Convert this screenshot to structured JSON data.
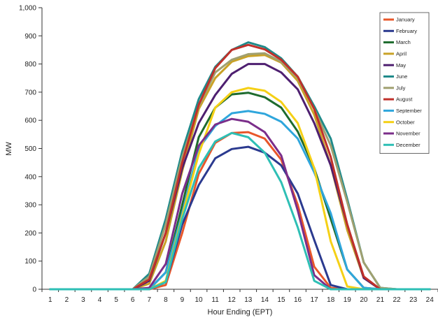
{
  "chart_data": {
    "type": "line",
    "xlabel": "Hour Ending (EPT)",
    "ylabel": "MW",
    "ylim": [
      0,
      1000
    ],
    "yticks": [
      0,
      100,
      200,
      300,
      400,
      500,
      600,
      700,
      800,
      900,
      1000
    ],
    "ytick_labels": [
      "0",
      "100",
      "200",
      "300",
      "400",
      "500",
      "600",
      "700",
      "800",
      "900",
      "1,000"
    ],
    "x": [
      1,
      2,
      3,
      4,
      5,
      6,
      7,
      8,
      9,
      10,
      11,
      12,
      13,
      14,
      15,
      16,
      17,
      18,
      19,
      20,
      21,
      22,
      23,
      24
    ],
    "xtick_labels": [
      "1",
      "2",
      "3",
      "4",
      "5",
      "6",
      "7",
      "8",
      "9",
      "10",
      "11",
      "12",
      "13",
      "14",
      "15",
      "16",
      "17",
      "18",
      "19",
      "20",
      "21",
      "22",
      "23",
      "24"
    ],
    "grid": false,
    "legend_position": "top-right",
    "series": [
      {
        "name": "January",
        "color": "#E8572A",
        "values": [
          0,
          0,
          0,
          0,
          0,
          0,
          0,
          15,
          200,
          410,
          520,
          555,
          558,
          535,
          460,
          300,
          80,
          5,
          0,
          0,
          0,
          0,
          0,
          0
        ]
      },
      {
        "name": "February",
        "color": "#2B3A8F",
        "values": [
          0,
          0,
          0,
          0,
          0,
          0,
          0,
          25,
          230,
          370,
          465,
          498,
          506,
          485,
          440,
          340,
          175,
          15,
          0,
          0,
          0,
          0,
          0,
          0
        ]
      },
      {
        "name": "March",
        "color": "#1E6B2E",
        "values": [
          0,
          0,
          0,
          0,
          0,
          0,
          0,
          60,
          300,
          540,
          645,
          692,
          698,
          682,
          645,
          560,
          430,
          250,
          70,
          5,
          0,
          0,
          0,
          0
        ]
      },
      {
        "name": "April",
        "color": "#C9A227",
        "values": [
          0,
          0,
          0,
          0,
          0,
          0,
          20,
          170,
          420,
          640,
          750,
          808,
          828,
          832,
          805,
          740,
          620,
          440,
          210,
          40,
          0,
          0,
          0,
          0
        ]
      },
      {
        "name": "May",
        "color": "#4E1F70",
        "values": [
          0,
          0,
          0,
          0,
          0,
          0,
          30,
          200,
          430,
          590,
          690,
          765,
          800,
          800,
          770,
          710,
          590,
          440,
          230,
          40,
          0,
          0,
          0,
          0
        ]
      },
      {
        "name": "June",
        "color": "#1F8A8A",
        "values": [
          0,
          0,
          0,
          0,
          0,
          0,
          55,
          250,
          490,
          675,
          790,
          850,
          877,
          860,
          820,
          755,
          650,
          535,
          320,
          95,
          5,
          0,
          0,
          0
        ]
      },
      {
        "name": "July",
        "color": "#A0A070",
        "values": [
          0,
          0,
          0,
          0,
          0,
          0,
          45,
          230,
          470,
          650,
          770,
          815,
          835,
          838,
          808,
          750,
          640,
          510,
          310,
          95,
          5,
          0,
          0,
          0
        ]
      },
      {
        "name": "August",
        "color": "#C0302A",
        "values": [
          0,
          0,
          0,
          0,
          0,
          0,
          35,
          200,
          450,
          655,
          785,
          850,
          868,
          852,
          815,
          755,
          640,
          470,
          230,
          45,
          0,
          0,
          0,
          0
        ]
      },
      {
        "name": "September",
        "color": "#2FA6DC",
        "values": [
          0,
          0,
          0,
          0,
          0,
          0,
          0,
          60,
          270,
          500,
          580,
          625,
          633,
          623,
          595,
          535,
          415,
          270,
          70,
          5,
          0,
          0,
          0,
          0
        ]
      },
      {
        "name": "October",
        "color": "#F5D016",
        "values": [
          0,
          0,
          0,
          0,
          0,
          0,
          0,
          30,
          260,
          480,
          645,
          700,
          715,
          705,
          665,
          590,
          430,
          170,
          10,
          0,
          0,
          0,
          0,
          0
        ]
      },
      {
        "name": "November",
        "color": "#7B2E8A",
        "values": [
          0,
          0,
          0,
          0,
          0,
          0,
          5,
          90,
          340,
          510,
          585,
          605,
          595,
          558,
          475,
          280,
          50,
          0,
          0,
          0,
          0,
          0,
          0,
          0
        ]
      },
      {
        "name": "December",
        "color": "#2EBFB5",
        "values": [
          0,
          0,
          0,
          0,
          0,
          0,
          0,
          25,
          250,
          430,
          525,
          555,
          540,
          485,
          380,
          220,
          30,
          0,
          0,
          0,
          0,
          0,
          0,
          0
        ]
      }
    ]
  }
}
